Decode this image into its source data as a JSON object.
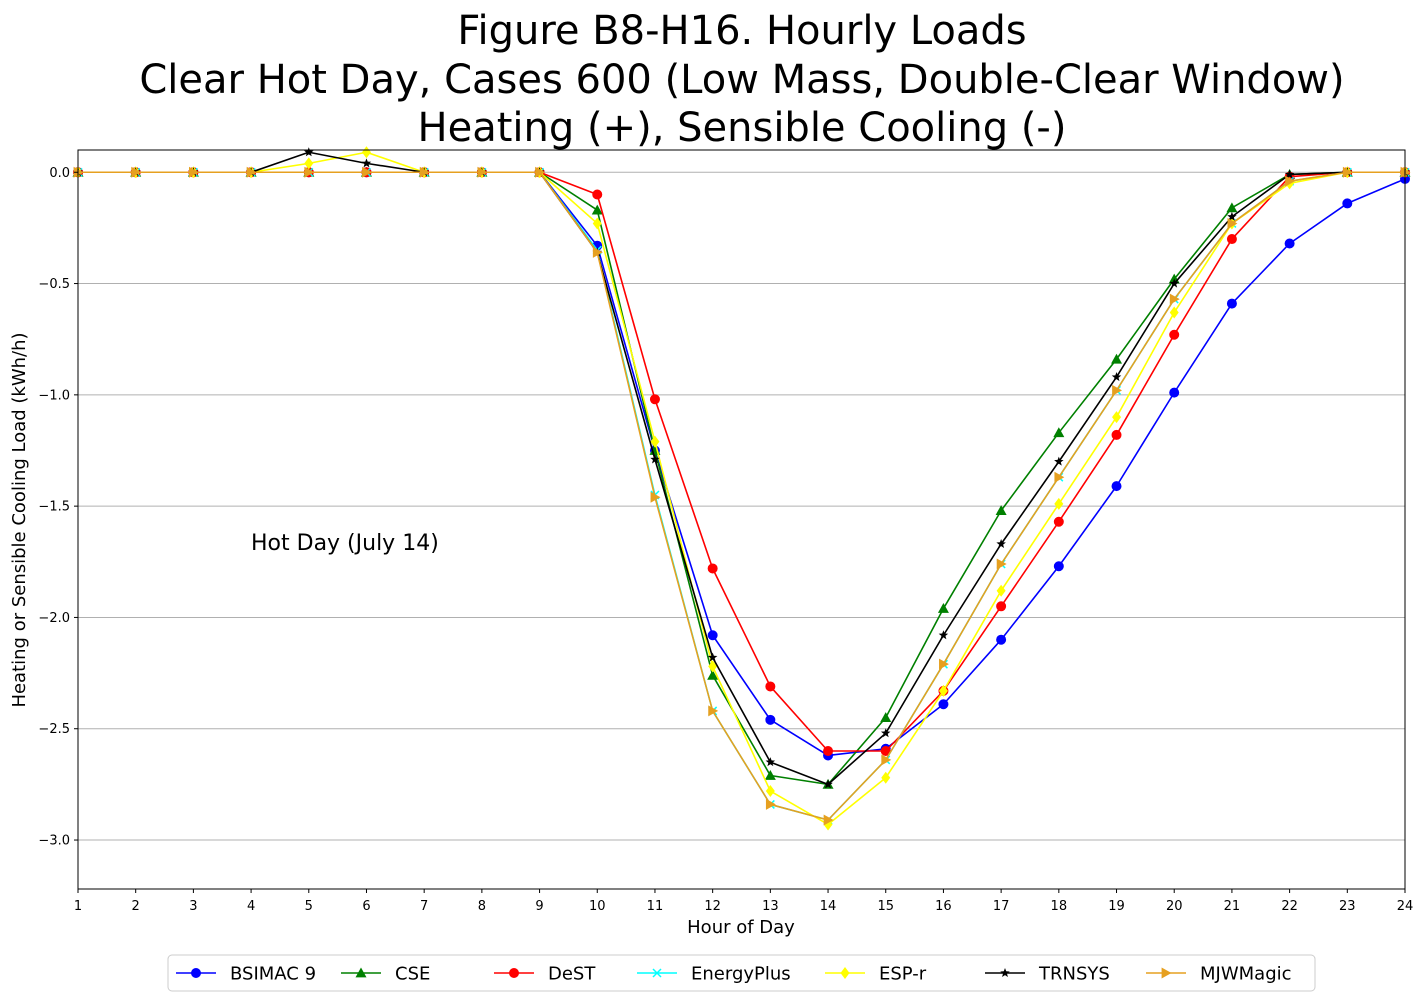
{
  "chart_data": {
    "type": "line",
    "title_lines": [
      "Figure B8-H16. Hourly Loads",
      "Clear Hot Day, Cases 600 (Low Mass, Double-Clear Window)",
      "Heating (+), Sensible Cooling (-)"
    ],
    "xlabel": "Hour of Day",
    "ylabel": "Heating or Sensible Cooling Load (kWh/h)",
    "annotation": "Hot Day (July 14)",
    "x": [
      1,
      2,
      3,
      4,
      5,
      6,
      7,
      8,
      9,
      10,
      11,
      12,
      13,
      14,
      15,
      16,
      17,
      18,
      19,
      20,
      21,
      22,
      23,
      24
    ],
    "x_ticks": [
      "1",
      "2",
      "3",
      "4",
      "5",
      "6",
      "7",
      "8",
      "9",
      "10",
      "11",
      "12",
      "13",
      "14",
      "15",
      "16",
      "17",
      "18",
      "19",
      "20",
      "21",
      "22",
      "23",
      "24"
    ],
    "y_ticks": [
      "0.0",
      "−0.5",
      "−1.0",
      "−1.5",
      "−2.0",
      "−2.5",
      "−3.0"
    ],
    "y_tick_values": [
      0,
      -0.5,
      -1.0,
      -1.5,
      -2.0,
      -2.5,
      -3.0
    ],
    "xlim": [
      1,
      24
    ],
    "ylim": [
      -3.22,
      0.1
    ],
    "grid": "horizontal",
    "legend_position": "bottom-center",
    "series": [
      {
        "name": "BSIMAC 9",
        "color": "#0000ff",
        "marker": "circle",
        "values": [
          0,
          0,
          0,
          0,
          0,
          0,
          0,
          0,
          0,
          -0.33,
          -1.25,
          -2.08,
          -2.46,
          -2.62,
          -2.59,
          -2.39,
          -2.1,
          -1.77,
          -1.41,
          -0.99,
          -0.59,
          -0.32,
          -0.14,
          -0.03
        ]
      },
      {
        "name": "CSE",
        "color": "#008000",
        "marker": "triangle-up",
        "values": [
          0,
          0,
          0,
          0,
          0,
          0,
          0,
          0,
          0,
          -0.17,
          -1.25,
          -2.26,
          -2.71,
          -2.75,
          -2.45,
          -1.96,
          -1.52,
          -1.17,
          -0.84,
          -0.48,
          -0.16,
          -0.01,
          0,
          0
        ]
      },
      {
        "name": "DeST",
        "color": "#ff0000",
        "marker": "circle",
        "values": [
          0,
          0,
          0,
          0,
          0,
          0,
          0,
          0,
          0,
          -0.1,
          -1.02,
          -1.78,
          -2.31,
          -2.6,
          -2.6,
          -2.33,
          -1.95,
          -1.57,
          -1.18,
          -0.73,
          -0.3,
          -0.02,
          0,
          0
        ]
      },
      {
        "name": "EnergyPlus",
        "color": "#00ffff",
        "marker": "x",
        "values": [
          0,
          0,
          0,
          0,
          0,
          0,
          0,
          0,
          0,
          -0.35,
          -1.45,
          -2.42,
          -2.84,
          -2.91,
          -2.64,
          -2.21,
          -1.76,
          -1.37,
          -0.98,
          -0.57,
          -0.23,
          -0.04,
          0,
          0
        ]
      },
      {
        "name": "ESP-r",
        "color": "#ffff00",
        "marker": "diamond",
        "values": [
          0,
          0,
          0,
          0,
          0.04,
          0.09,
          0,
          0,
          0,
          -0.23,
          -1.21,
          -2.22,
          -2.78,
          -2.93,
          -2.72,
          -2.33,
          -1.88,
          -1.49,
          -1.1,
          -0.63,
          -0.23,
          -0.05,
          0,
          0
        ]
      },
      {
        "name": "TRNSYS",
        "color": "#000000",
        "marker": "star",
        "values": [
          0,
          0,
          0,
          0,
          0.09,
          0.04,
          0,
          0,
          0,
          -0.36,
          -1.29,
          -2.18,
          -2.65,
          -2.75,
          -2.52,
          -2.08,
          -1.67,
          -1.3,
          -0.92,
          -0.5,
          -0.2,
          -0.01,
          0,
          0
        ]
      },
      {
        "name": "MJWMagic",
        "color": "#e6a020",
        "marker": "triangle-right",
        "values": [
          0,
          0,
          0,
          0,
          0,
          0,
          0,
          0,
          0,
          -0.36,
          -1.46,
          -2.42,
          -2.84,
          -2.91,
          -2.64,
          -2.21,
          -1.76,
          -1.37,
          -0.98,
          -0.57,
          -0.23,
          -0.04,
          0,
          0
        ]
      }
    ]
  }
}
